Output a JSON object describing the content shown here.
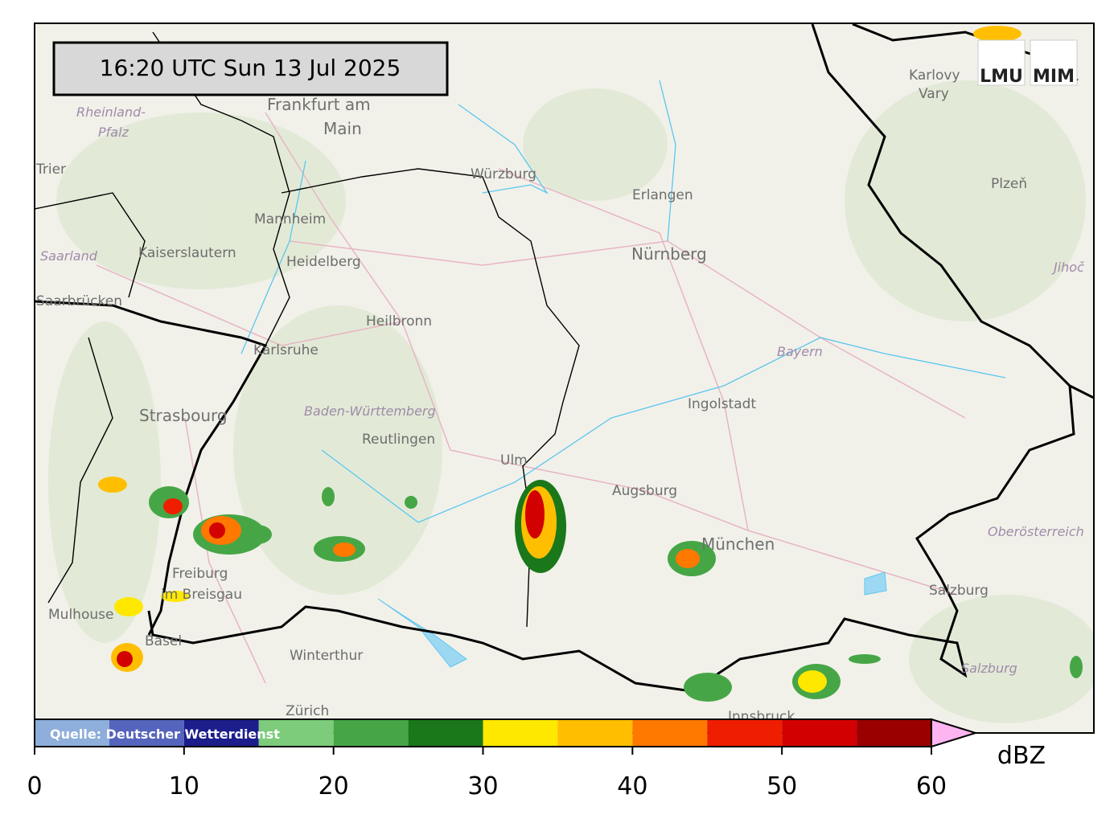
{
  "timestamp": "16:20 UTC  Sun 13 Jul 2025",
  "logos": [
    "LMU",
    "MIM"
  ],
  "map_labels": [
    "Rheinland-",
    "Pfalz",
    "Frankfurt am",
    "Main",
    "Trier",
    "Mannheim",
    "Kaiserslautern",
    "Heidelberg",
    "Saarland",
    "Saarbrücken",
    "Würzburg",
    "Erlangen",
    "Nürnberg",
    "Karlovy",
    "Vary",
    "Plzeň",
    "Heilbronn",
    "Karlsruhe",
    "Bayern",
    "Jihoč",
    "Ingolstadt",
    "Strasbourg",
    "Baden-Württemberg",
    "Reutlingen",
    "Ulm",
    "Augsburg",
    "München",
    "Oberösterreich",
    "Freiburg",
    "im Breisgau",
    "Mulhouse",
    "Basel",
    "Salzburg",
    "Winterthur",
    "Zürich",
    "Innsbruck",
    "Salzburg"
  ],
  "colorbar": {
    "source": "Quelle: Deutscher Wetterdienst",
    "unit": "dBZ",
    "bins": [
      0,
      5,
      10,
      15,
      20,
      25,
      30,
      35,
      40,
      45,
      50,
      55,
      60
    ],
    "colors": [
      "#8eaedb",
      "#5565bd",
      "#1d1d8c",
      "#7ccc7c",
      "#46a646",
      "#1a781a",
      "#ffe800",
      "#ffbf00",
      "#ff7800",
      "#f01e00",
      "#d20000",
      "#9a0000"
    ],
    "extend_color": "#ffb4f2",
    "xlim": [
      0,
      60
    ],
    "xticks": [
      0,
      10,
      20,
      30,
      40,
      50,
      60
    ]
  }
}
